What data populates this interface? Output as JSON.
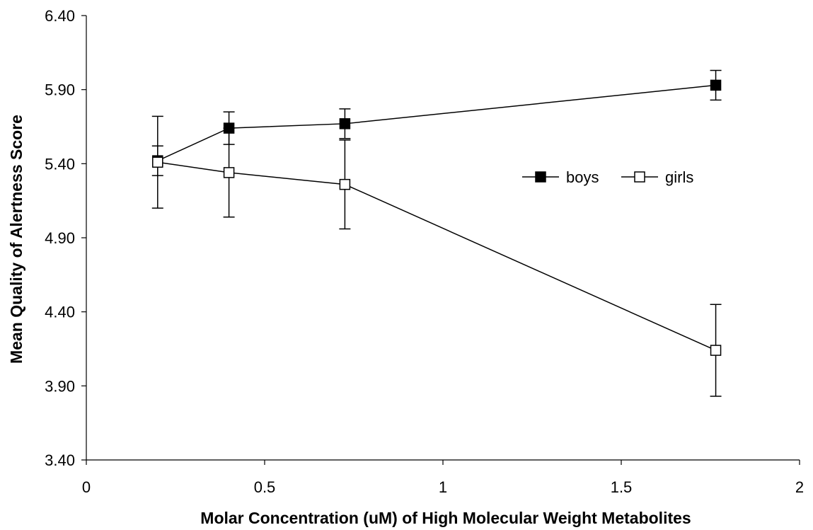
{
  "chart_data": {
    "type": "scatter",
    "xlabel": "Molar Concentration (uM) of High Molecular Weight Metabolites",
    "ylabel": "Mean Quality of Alertness Score",
    "xlim": [
      0,
      2
    ],
    "ylim": [
      3.4,
      6.4
    ],
    "x_ticks": [
      "0",
      "0.5",
      "1",
      "1.5",
      "2"
    ],
    "y_ticks": [
      "3.40",
      "3.90",
      "4.40",
      "4.90",
      "5.40",
      "5.90",
      "6.40"
    ],
    "x_tick_values": [
      0,
      0.5,
      1,
      1.5,
      2
    ],
    "y_tick_values": [
      3.4,
      3.9,
      4.4,
      4.9,
      5.4,
      5.9,
      6.4
    ],
    "grid": false,
    "legend": "center-right",
    "series": [
      {
        "name": "boys",
        "marker": "filled-square",
        "color": "#000000",
        "x": [
          0.2,
          0.4,
          0.725,
          1.765
        ],
        "y": [
          5.42,
          5.64,
          5.67,
          5.93
        ],
        "error": [
          0.1,
          0.11,
          0.1,
          0.1
        ]
      },
      {
        "name": "girls",
        "marker": "open-square",
        "color": "#000000",
        "x": [
          0.2,
          0.4,
          0.725,
          1.765
        ],
        "y": [
          5.41,
          5.34,
          5.26,
          4.14
        ],
        "error": [
          0.31,
          0.3,
          0.3,
          0.31
        ]
      }
    ]
  }
}
